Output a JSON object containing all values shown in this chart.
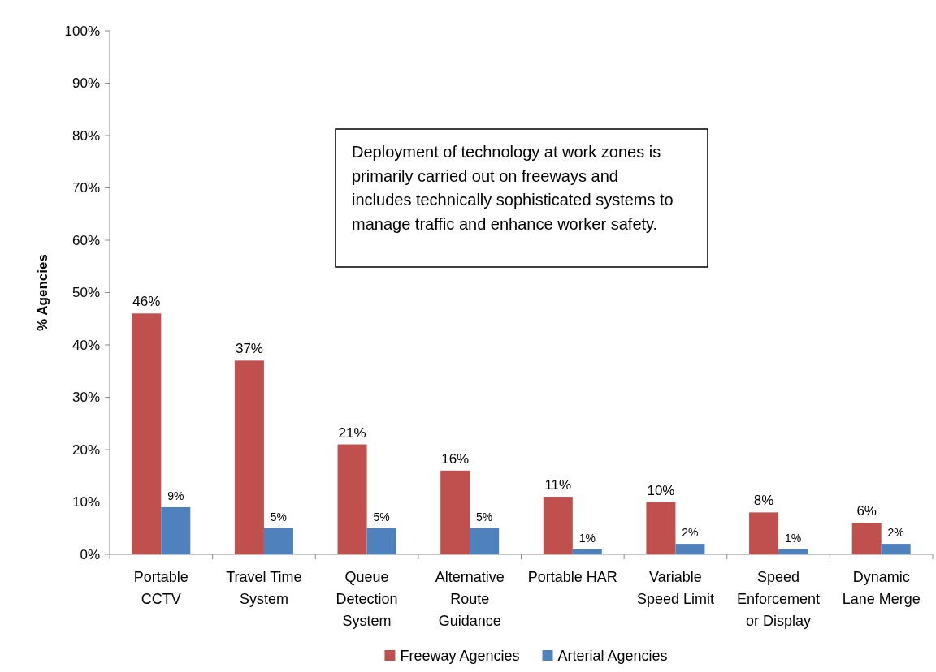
{
  "chart_data": {
    "type": "bar",
    "ylabel": "% Agencies",
    "categories": [
      "Portable CCTV",
      "Travel Time System",
      "Queue Detection System",
      "Alternative Route Guidance",
      "Portable HAR",
      "Variable Speed Limit",
      "Speed Enforcement or Display",
      "Dynamic Lane Merge"
    ],
    "series": [
      {
        "name": "Freeway Agencies",
        "color": "#c0504d",
        "values": [
          46,
          37,
          21,
          16,
          11,
          10,
          8,
          6
        ],
        "value_labels": [
          "46%",
          "37%",
          "21%",
          "16%",
          "11%",
          "10%",
          "8%",
          "6%"
        ]
      },
      {
        "name": "Arterial Agencies",
        "color": "#4f81bd",
        "values": [
          9,
          5,
          5,
          5,
          1,
          2,
          1,
          2
        ],
        "value_labels": [
          "9%",
          "5%",
          "5%",
          "5%",
          "1%",
          "2%",
          "1%",
          "2%"
        ]
      }
    ],
    "ylim": [
      0,
      100
    ],
    "yticks": [
      {
        "value": 0,
        "label": "0%"
      },
      {
        "value": 10,
        "label": "10%"
      },
      {
        "value": 20,
        "label": "20%"
      },
      {
        "value": 30,
        "label": "30%"
      },
      {
        "value": 40,
        "label": "40%"
      },
      {
        "value": 50,
        "label": "50%"
      },
      {
        "value": 60,
        "label": "60%"
      },
      {
        "value": 70,
        "label": "70%"
      },
      {
        "value": 80,
        "label": "80%"
      },
      {
        "value": 90,
        "label": "90%"
      },
      {
        "value": 100,
        "label": "100%"
      }
    ],
    "legend": "bottom",
    "annotations": [
      "Deployment of technology at work zones is primarily carried out on freeways and includes technically sophisticated systems to manage traffic and enhance worker safety."
    ]
  }
}
